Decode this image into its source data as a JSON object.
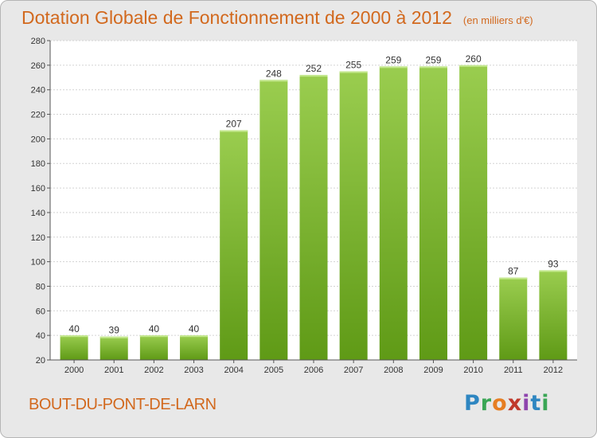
{
  "title": "Dotation Globale de Fonctionnement de 2000 à 2012",
  "unit": "(en milliers d'€)",
  "commune": "BOUT-DU-PONT-DE-LARN",
  "logo_text": "Proxiti",
  "colors": {
    "bar_top": "#9acd4f",
    "bar_bottom": "#5f9a16",
    "title": "#d2691e",
    "background": "#e8e8e8"
  },
  "chart_data": {
    "type": "bar",
    "categories": [
      "2000",
      "2001",
      "2002",
      "2003",
      "2004",
      "2005",
      "2006",
      "2007",
      "2008",
      "2009",
      "2010",
      "2011",
      "2012"
    ],
    "values": [
      40,
      39,
      40,
      40,
      207,
      248,
      252,
      255,
      259,
      259,
      260,
      87,
      93
    ],
    "ylim": [
      20,
      280
    ],
    "yticks": [
      20,
      40,
      60,
      80,
      100,
      120,
      140,
      160,
      180,
      200,
      220,
      240,
      260,
      280
    ],
    "grid": true
  }
}
